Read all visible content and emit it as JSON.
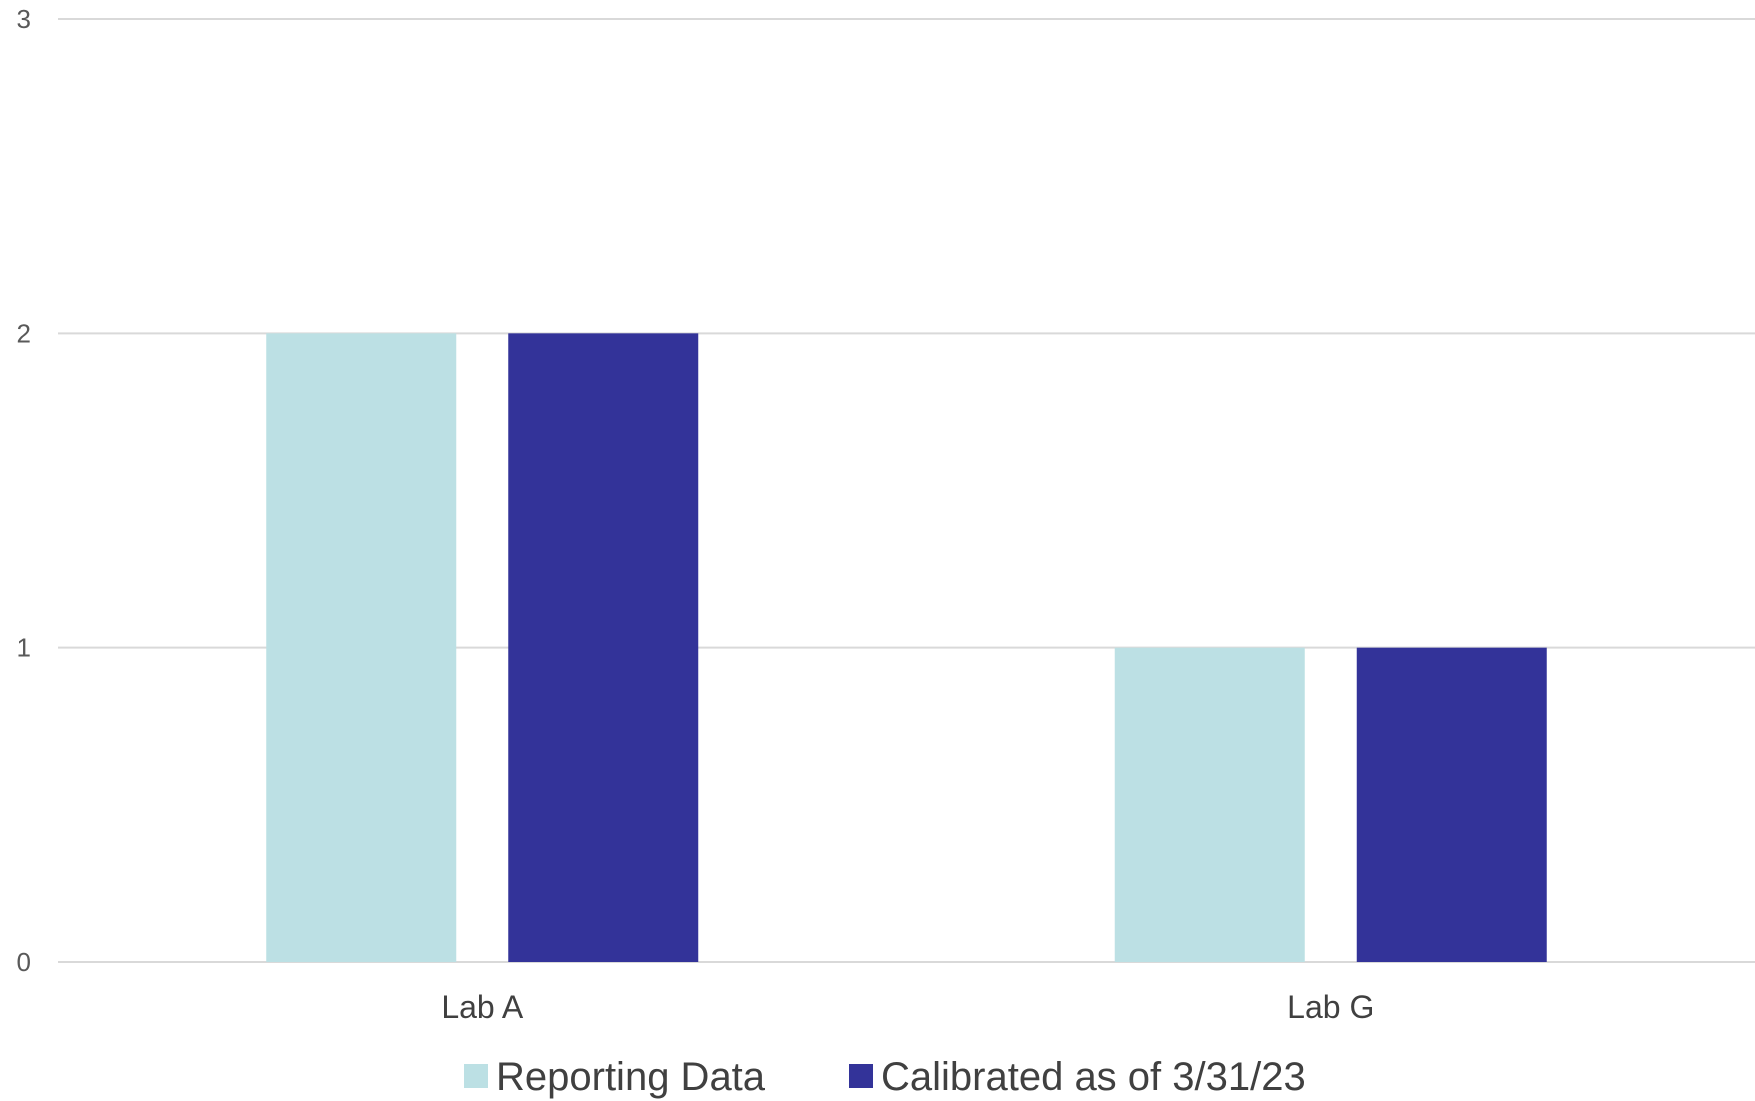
{
  "chart_data": {
    "type": "bar",
    "categories": [
      "Lab A",
      "Lab G"
    ],
    "series": [
      {
        "name": "Reporting Data",
        "values": [
          2,
          1
        ],
        "color": "#BCE0E4"
      },
      {
        "name": "Calibrated as of 3/31/23",
        "values": [
          2,
          1
        ],
        "color": "#333399"
      }
    ],
    "ylim": [
      0,
      3
    ],
    "yticks": [
      "0",
      "1",
      "2",
      "3"
    ],
    "grid": true,
    "legend_position": "bottom",
    "title": "",
    "xlabel": "",
    "ylabel": ""
  }
}
